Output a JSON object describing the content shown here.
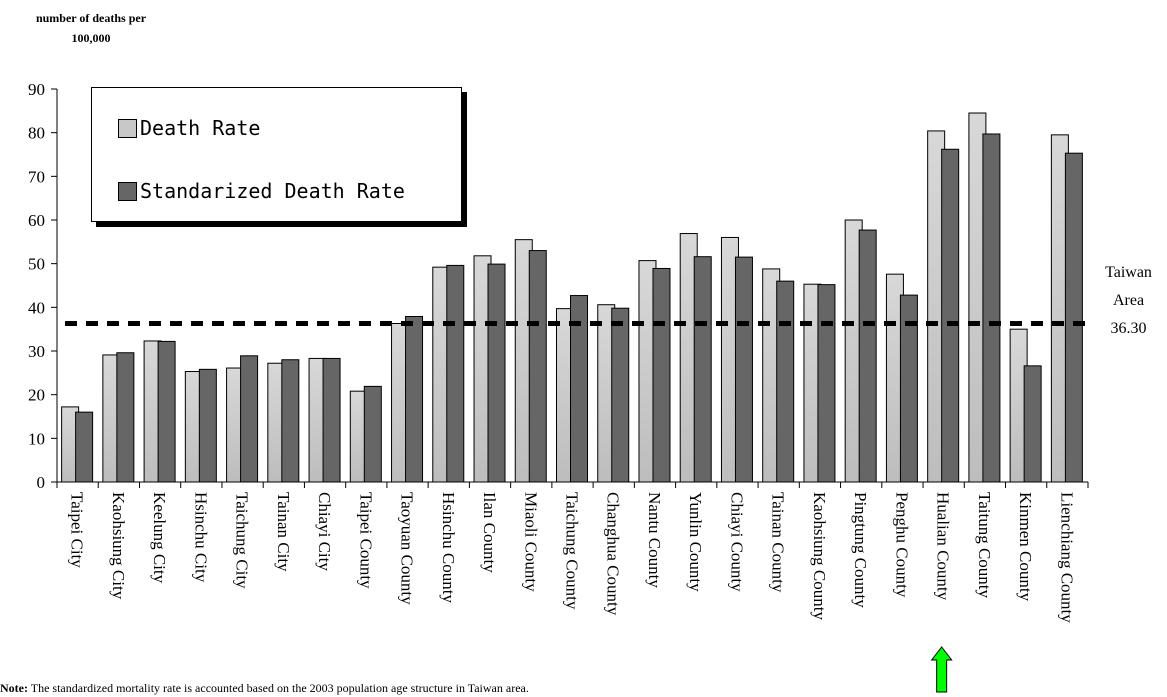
{
  "chart_data": {
    "type": "bar",
    "ylabel": "number of deaths per 100,000",
    "ylim": [
      0,
      90
    ],
    "yticks": [
      0,
      10,
      20,
      30,
      40,
      50,
      60,
      70,
      80,
      90
    ],
    "categories": [
      "Taipei City",
      "Kaohsiung City",
      "Keelung City",
      "Hsinchu City",
      "Taichung City",
      "Tainan City",
      "Chiayi City",
      "Taipei County",
      "Taoyuan County",
      "Hsinchu County",
      "Ilan County",
      "Miaoli County",
      "Taichung County",
      "Changhua County",
      "Nantu County",
      "Yunlin County",
      "Chiayi County",
      "Tainan County",
      "Kaohsiung County",
      "Pingtung County",
      "Penghu County",
      "Hualian County",
      "Taitung County",
      "Kinmen County",
      "Lienchiang County"
    ],
    "series": [
      {
        "name": "Death Rate",
        "color": "#c8c8c8",
        "values": [
          17.2,
          29.1,
          32.3,
          25.3,
          26.1,
          27.2,
          28.3,
          20.8,
          36.3,
          49.2,
          51.8,
          55.5,
          39.7,
          40.6,
          50.7,
          56.9,
          56.0,
          48.8,
          45.3,
          60.0,
          47.6,
          80.4,
          84.5,
          35.0,
          79.5
        ]
      },
      {
        "name": "Standarized Death Rate",
        "color": "#666666",
        "values": [
          16.0,
          29.6,
          32.2,
          25.8,
          28.9,
          28.0,
          28.3,
          21.9,
          37.9,
          49.6,
          49.9,
          53.0,
          42.7,
          39.8,
          48.9,
          51.6,
          51.5,
          46.0,
          45.2,
          57.7,
          42.8,
          76.2,
          79.7,
          26.6,
          75.3
        ]
      }
    ],
    "reference_line": {
      "value": 36.3,
      "label_line1": "Taiwan",
      "label_line2": "Area",
      "label_value": "36.30"
    },
    "legend": {
      "position": "top-left",
      "label_1": "Death Rate",
      "label_2": "Standarized Death Rate"
    },
    "highlight": {
      "category": "Hualian County",
      "marker": "up-arrow",
      "color": "#00ff00"
    },
    "grid": false
  },
  "ytitle": {
    "line1": "number of deaths per",
    "line2": "100,000"
  },
  "note": {
    "label": "Note:",
    "text": " The standardized mortality rate is accounted based on the 2003 population age structure in Taiwan area."
  }
}
